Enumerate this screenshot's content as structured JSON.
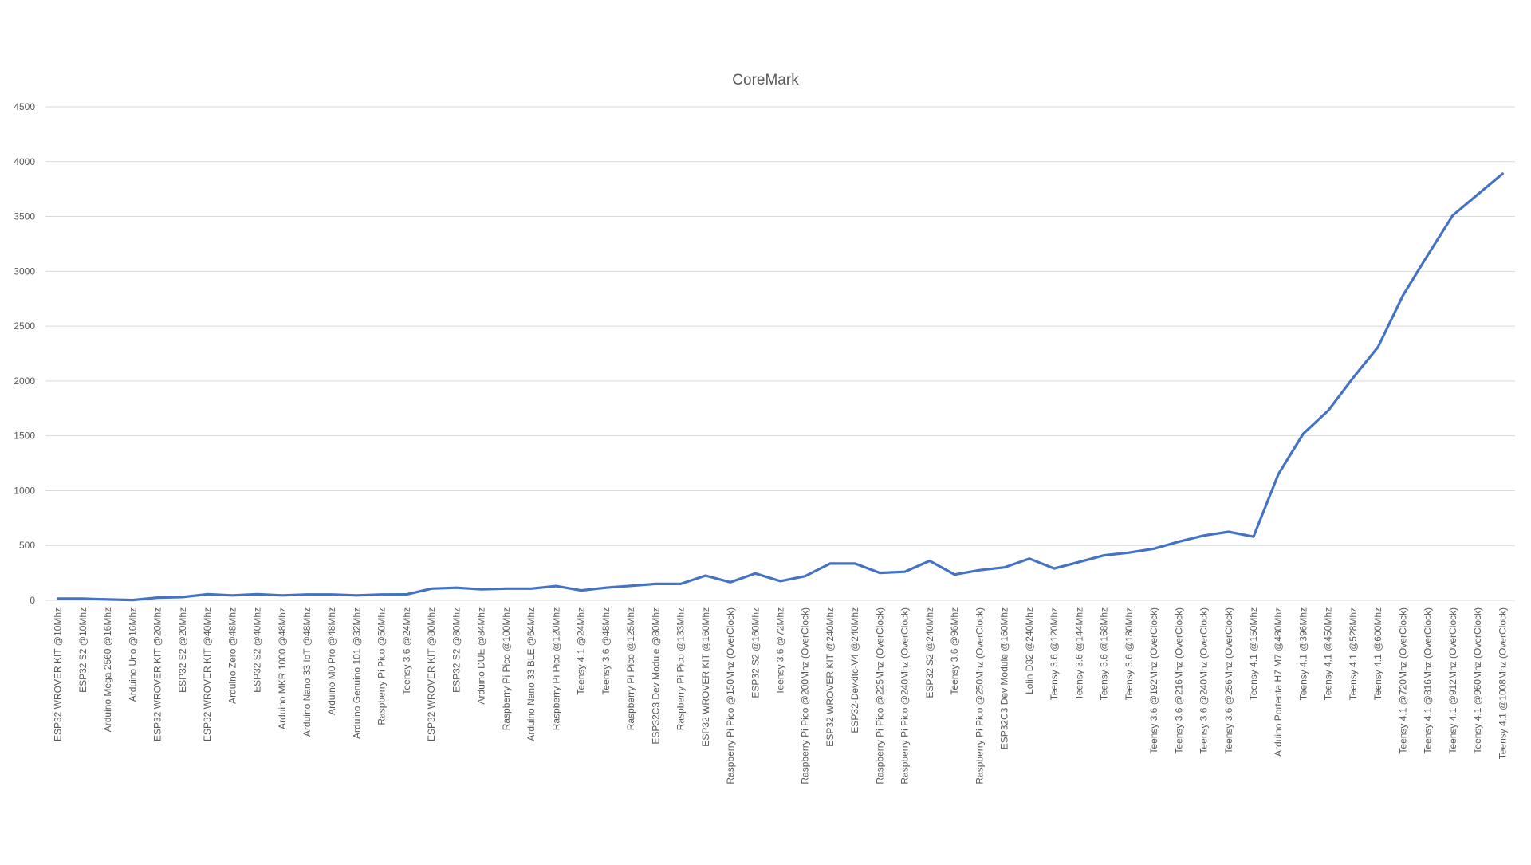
{
  "chart_data": {
    "type": "line",
    "title": "CoreMark",
    "xlabel": "",
    "ylabel": "",
    "ylim": [
      0,
      4500
    ],
    "yticks": [
      0,
      500,
      1000,
      1500,
      2000,
      2500,
      3000,
      3500,
      4000,
      4500
    ],
    "grid": true,
    "legend": "none",
    "line_color": "#4472C4",
    "grid_color": "#D9D9D9",
    "text_color": "#595959",
    "categories": [
      "ESP32 WROVER KIT @10Mhz",
      "ESP32 S2 @10Mhz",
      "Arduino Mega 2560 @16Mhz",
      "Arduino Uno @16Mhz",
      "ESP32 WROVER KIT @20Mhz",
      "ESP32 S2 @20Mhz",
      "ESP32 WROVER KIT @40Mhz",
      "Arduino Zero @48Mhz",
      "ESP32 S2 @40Mhz",
      "Arduino MKR 1000 @48Mhz",
      "Arduino Nano 33 IoT @48Mhz",
      "Arduino M0 Pro @48Mhz",
      "Arduino Genuino 101 @32Mhz",
      "Raspberry Pi Pico @50Mhz",
      "Teensy 3.6 @24Mhz",
      "ESP32 WROVER KIT @80Mhz",
      "ESP32 S2 @80Mhz",
      "Arduino DUE @84Mhz",
      "Raspberry Pi Pico @100Mhz",
      "Arduino Nano 33 BLE @64Mhz",
      "Raspberry Pi Pico @120Mhz",
      "Teensy 4.1 @24Mhz",
      "Teensy 3.6 @48Mhz",
      "Raspberry Pi Pico @125Mhz",
      "ESP32C3 Dev Module @80Mhz",
      "Raspberry Pi Pico @133Mhz",
      "ESP32 WROVER KIT @160Mhz",
      "Raspberry Pi Pico @150Mhz (OverClock)",
      "ESP32 S2 @160Mhz",
      "Teensy 3.6 @72Mhz",
      "Raspberry Pi Pico @200Mhz (OverClock)",
      "ESP32 WROVER KIT @240Mhz",
      "ESP32-Devkitc-V4 @240Mhz",
      "Raspberry Pi Pico @225Mhz (OverClock)",
      "Raspberry Pi Pico @240Mhz (OverClock)",
      "ESP32 S2 @240Mhz",
      "Teensy 3.6 @96Mhz",
      "Raspberry Pi Pico @250Mhz (OverClock)",
      "ESP32C3 Dev Module @160Mhz",
      "Lolin D32 @240Mhz",
      "Teensy 3.6 @120Mhz",
      "Teensy 3.6 @144Mhz",
      "Teensy 3.6 @168Mhz",
      "Teensy 3.6 @180Mhz",
      "Teensy 3.6 @192Mhz (OverClock)",
      "Teensy 3.6 @216Mhz (OverClock)",
      "Teensy 3.6 @240Mhz (OverClock)",
      "Teensy 3.6 @256Mhz (OverClock)",
      "Teensy 4.1 @150Mhz",
      "Arduino Portenta H7 M7 @480Mhz",
      "Teensy 4.1 @396Mhz",
      "Teensy 4.1 @450Mhz",
      "Teensy 4.1 @528Mhz",
      "Teensy 4.1 @600Mhz",
      "Teensy 4.1 @720Mhz (OverClock)",
      "Teensy 4.1 @816Mhz (OverClock)",
      "Teensy 4.1 @912Mhz (OverClock)",
      "Teensy 4.1 @960Mhz (OverClock)",
      "Teensy 4.1 @1008Mhz (OverClock)"
    ],
    "series": [
      {
        "name": "CoreMark",
        "values": [
          15,
          15,
          8,
          3,
          25,
          30,
          55,
          45,
          55,
          45,
          53,
          53,
          45,
          53,
          54,
          107,
          115,
          100,
          107,
          107,
          130,
          90,
          115,
          132,
          150,
          150,
          225,
          165,
          245,
          175,
          220,
          335,
          335,
          250,
          260,
          360,
          235,
          275,
          300,
          380,
          290,
          350,
          410,
          435,
          470,
          535,
          590,
          625,
          580,
          1150,
          1520,
          1730,
          2030,
          2310,
          2780,
          3150,
          3510,
          3700,
          3890
        ]
      }
    ]
  }
}
